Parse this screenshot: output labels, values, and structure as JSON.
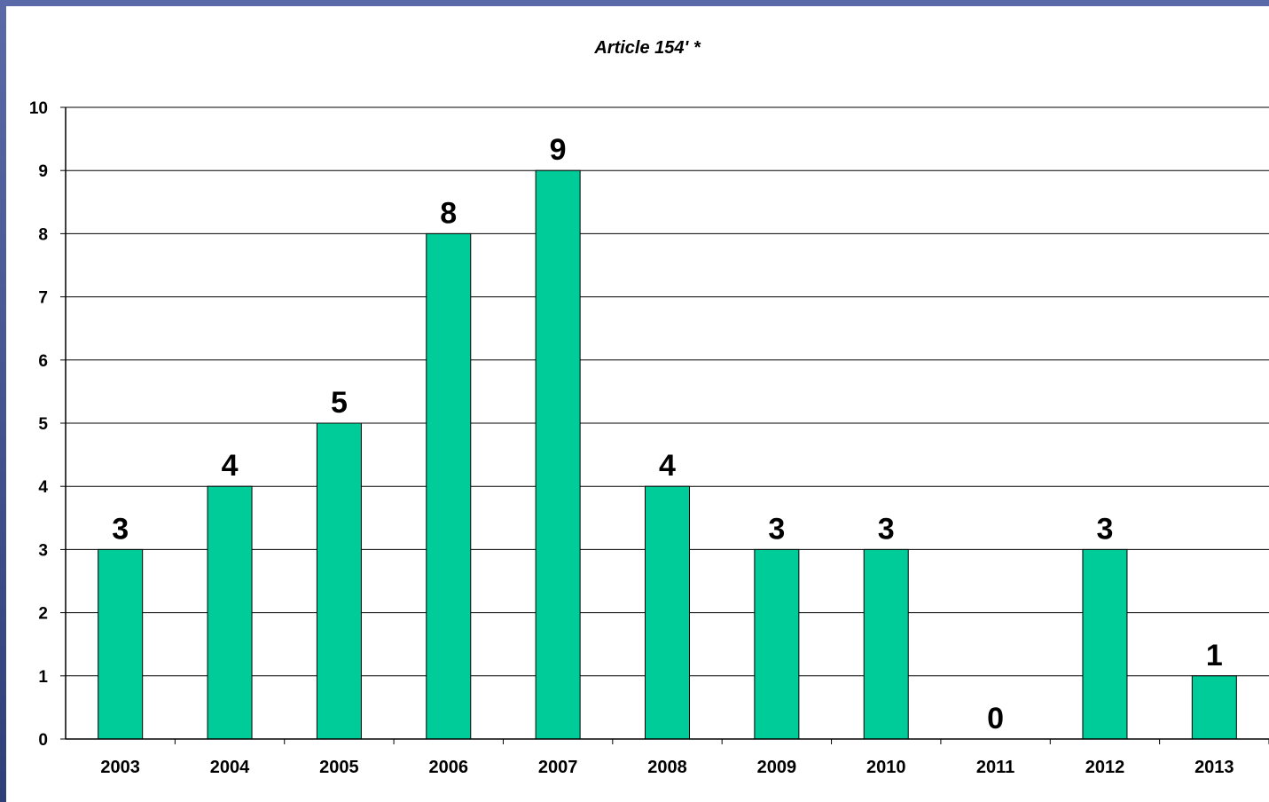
{
  "chart_data": {
    "type": "bar",
    "title": "Article 154'  *",
    "categories": [
      "2003",
      "2004",
      "2005",
      "2006",
      "2007",
      "2008",
      "2009",
      "2010",
      "2011",
      "2012",
      "2013"
    ],
    "values": [
      3,
      4,
      5,
      8,
      9,
      4,
      3,
      3,
      0,
      3,
      1
    ],
    "data_labels": [
      "3",
      "4",
      "5",
      "8",
      "9",
      "4",
      "3",
      "3",
      "0",
      "3",
      "1"
    ],
    "y_ticks": [
      "0",
      "1",
      "2",
      "3",
      "4",
      "5",
      "6",
      "7",
      "8",
      "9",
      "10"
    ],
    "ylim": [
      0,
      10
    ],
    "xlabel": "",
    "ylabel": "",
    "grid": true,
    "legend": "none",
    "colors": {
      "bar_fill": "#00cc99",
      "bar_stroke": "#000000",
      "gridline": "#000000",
      "plot_background": "#ffffff",
      "frame_background": "#3b4d86"
    }
  }
}
